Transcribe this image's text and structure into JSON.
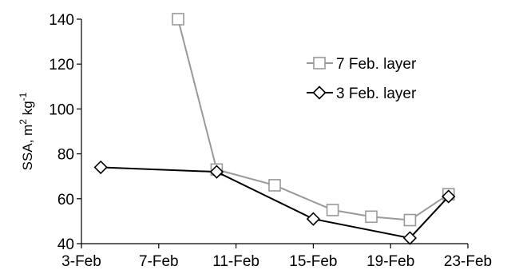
{
  "chart_data": {
    "type": "line",
    "title": "",
    "xlabel": "",
    "ylabel": {
      "prefix": "SSA, m",
      "sup1": "2",
      "middle": " kg",
      "sup2": "-1"
    },
    "ylim": [
      40,
      140
    ],
    "yticks": [
      40,
      60,
      80,
      100,
      120,
      140
    ],
    "xticks": [
      {
        "date": "2000-02-03",
        "label": "3-Feb"
      },
      {
        "date": "2000-02-07",
        "label": "7-Feb"
      },
      {
        "date": "2000-02-11",
        "label": "11-Feb"
      },
      {
        "date": "2000-02-15",
        "label": "15-Feb"
      },
      {
        "date": "2000-02-19",
        "label": "19-Feb"
      },
      {
        "date": "2000-02-23",
        "label": "23-Feb"
      }
    ],
    "xlim": [
      "2000-02-03",
      "2000-02-23"
    ],
    "grid": false,
    "legend_position": "upper-right",
    "series": [
      {
        "name": "7 Feb. layer",
        "color": "#999999",
        "marker": "square",
        "points": [
          {
            "x": "2000-02-08",
            "y": 140
          },
          {
            "x": "2000-02-10",
            "y": 73
          },
          {
            "x": "2000-02-13",
            "y": 66
          },
          {
            "x": "2000-02-16",
            "y": 55
          },
          {
            "x": "2000-02-18",
            "y": 52
          },
          {
            "x": "2000-02-20",
            "y": 50.5
          },
          {
            "x": "2000-02-22",
            "y": 62
          }
        ]
      },
      {
        "name": "3 Feb. layer",
        "color": "#000000",
        "marker": "diamond",
        "points": [
          {
            "x": "2000-02-04",
            "y": 74
          },
          {
            "x": "2000-02-10",
            "y": 72
          },
          {
            "x": "2000-02-15",
            "y": 51
          },
          {
            "x": "2000-02-20",
            "y": 42.5
          },
          {
            "x": "2000-02-22",
            "y": 61
          }
        ]
      }
    ]
  }
}
